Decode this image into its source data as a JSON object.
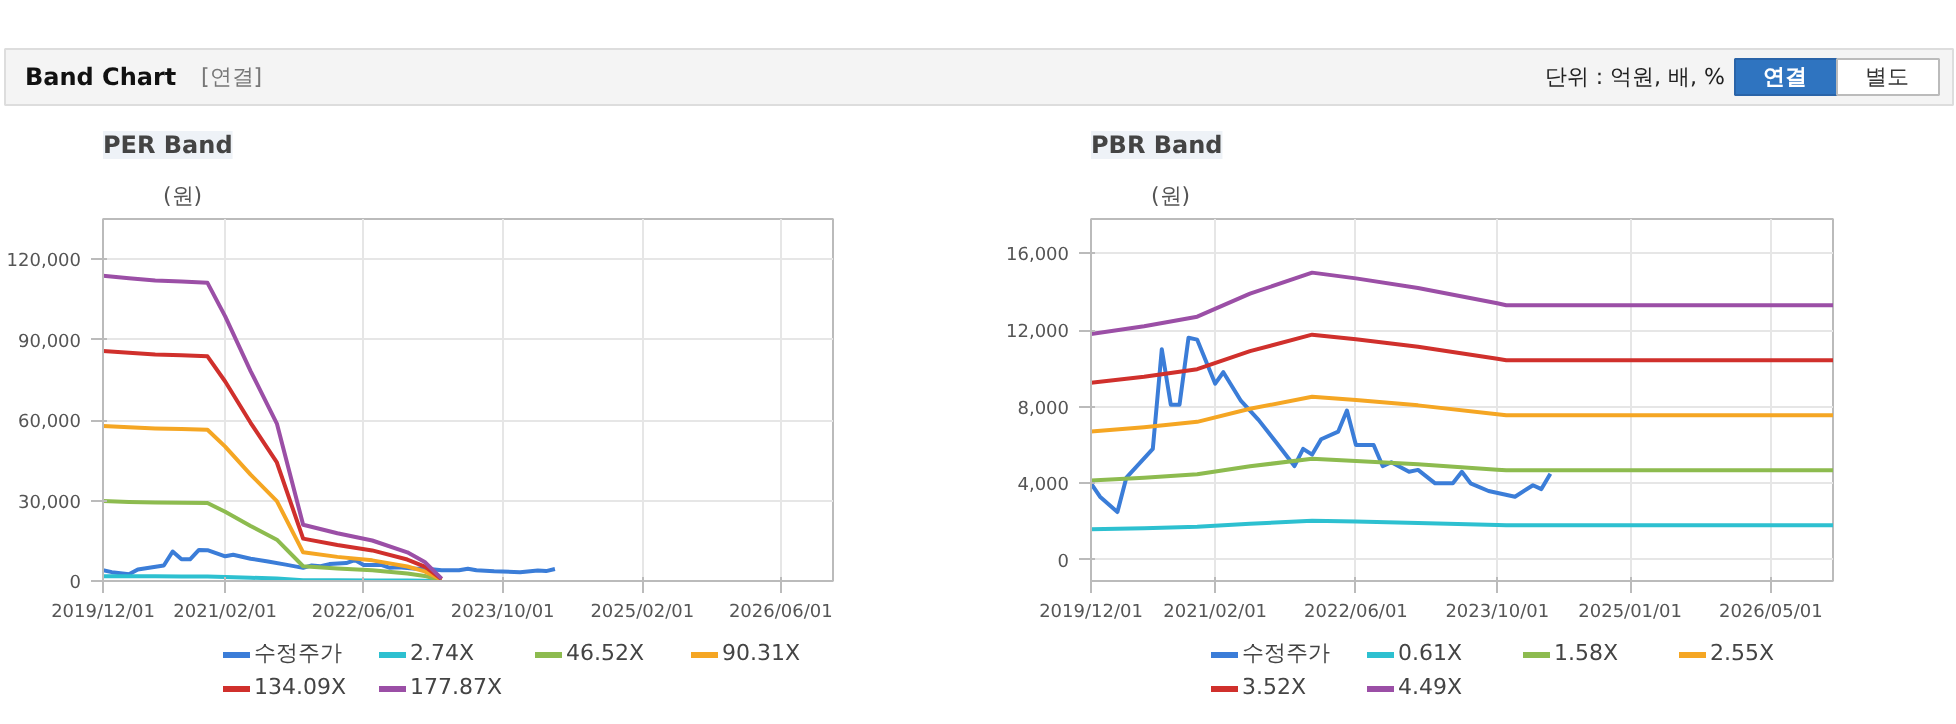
{
  "chart_data": [
    {
      "type": "other",
      "title": "Band Chart",
      "annotations": [
        "[연결]",
        "단위 : 억원, 배, %",
        "연결",
        "별도"
      ]
    },
    {
      "type": "line",
      "title": "PER Band",
      "ylabel": "(원)",
      "grid": true,
      "legend": "bottom",
      "marker": "none",
      "line_style": "solid",
      "xlim": [
        "2019-12-01",
        "2026-12-01"
      ],
      "ylim": [
        0,
        135000
      ],
      "xticks": [
        {
          "value": "2019-12-01",
          "label": "2019/12/01"
        },
        {
          "value": "2021-02-01",
          "label": "2021/02/01"
        },
        {
          "value": "2022-06-01",
          "label": "2022/06/01"
        },
        {
          "value": "2023-10-01",
          "label": "2023/10/01"
        },
        {
          "value": "2025-02-01",
          "label": "2025/02/01"
        },
        {
          "value": "2026-06-01",
          "label": "2026/06/01"
        }
      ],
      "yticks": [
        {
          "value": 0,
          "label": "0"
        },
        {
          "value": 30000,
          "label": "30,000"
        },
        {
          "value": 60000,
          "label": "60,000"
        },
        {
          "value": 90000,
          "label": "90,000"
        },
        {
          "value": 120000,
          "label": "120,000"
        }
      ],
      "x": [
        "2019-12-01",
        "2020-03-01",
        "2020-06-01",
        "2020-09-01",
        "2020-12-01",
        "2021-02-01",
        "2021-05-01",
        "2021-08-01",
        "2021-11-01",
        "2022-03-01",
        "2022-07-01",
        "2022-11-01",
        "2023-01-01",
        "2023-03-01"
      ],
      "series": [
        {
          "name": "수정주가",
          "color": "#3b7dd8",
          "x": [
            "2019-12-01",
            "2020-01-01",
            "2020-03-01",
            "2020-04-01",
            "2020-07-01",
            "2020-08-01",
            "2020-09-01",
            "2020-10-01",
            "2020-11-01",
            "2020-12-01",
            "2021-02-01",
            "2021-03-01",
            "2021-05-01",
            "2021-07-01",
            "2021-09-01",
            "2021-11-01",
            "2021-12-01",
            "2022-01-01",
            "2022-02-01",
            "2022-04-01",
            "2022-05-01",
            "2022-06-01",
            "2022-08-01",
            "2022-09-01",
            "2022-10-01",
            "2022-12-01",
            "2023-01-01",
            "2023-03-01",
            "2023-05-01",
            "2023-06-01",
            "2023-07-01",
            "2023-09-01",
            "2023-12-01",
            "2024-02-01",
            "2024-03-01",
            "2024-04-01"
          ],
          "values": [
            4000,
            3300,
            2500,
            4300,
            5800,
            11000,
            8100,
            8100,
            11600,
            11500,
            9200,
            9800,
            8300,
            7300,
            6100,
            4900,
            5800,
            5500,
            6300,
            6700,
            7800,
            6000,
            6000,
            4900,
            5100,
            4600,
            4700,
            4000,
            4000,
            4600,
            4000,
            3600,
            3300,
            3900,
            3700,
            4500
          ]
        },
        {
          "name": "2.74X",
          "color": "#2dc0d0",
          "values": [
            1750,
            1740,
            1730,
            1720,
            1710,
            1520,
            1210,
            900,
            320,
            270,
            230,
            160,
            110,
            15
          ]
        },
        {
          "name": "46.52X",
          "color": "#8dbb4f",
          "values": [
            29800,
            29500,
            29300,
            29200,
            29100,
            25800,
            20500,
            15400,
            5500,
            4700,
            4000,
            2800,
            1900,
            200
          ]
        },
        {
          "name": "90.31X",
          "color": "#f5a623",
          "values": [
            57800,
            57300,
            56900,
            56700,
            56400,
            50100,
            39700,
            29800,
            10700,
            9000,
            7700,
            5400,
            3600,
            500
          ]
        },
        {
          "name": "134.09X",
          "color": "#d0302c",
          "values": [
            85800,
            85100,
            84500,
            84200,
            83800,
            74400,
            59000,
            44200,
            15800,
            13400,
            11400,
            8000,
            5400,
            700
          ]
        },
        {
          "name": "177.87X",
          "color": "#9b4fa6",
          "values": [
            113800,
            112900,
            112100,
            111700,
            111200,
            98700,
            78300,
            58700,
            21000,
            17800,
            15100,
            10700,
            7100,
            900
          ]
        }
      ]
    },
    {
      "type": "line",
      "title": "PBR Band",
      "ylabel": "(원)",
      "grid": true,
      "legend": "bottom",
      "marker": "none",
      "line_style": "solid",
      "xlim": [
        "2019-12-01",
        "2026-12-01"
      ],
      "ylim": [
        -1100,
        17800
      ],
      "xticks": [
        {
          "value": "2019-12-01",
          "label": "2019/12/01"
        },
        {
          "value": "2021-02-01",
          "label": "2021/02/01"
        },
        {
          "value": "2022-06-01",
          "label": "2022/06/01"
        },
        {
          "value": "2023-10-01",
          "label": "2023/10/01"
        },
        {
          "value": "2025-01-01",
          "label": "2025/01/01"
        },
        {
          "value": "2026-05-01",
          "label": "2026/05/01"
        }
      ],
      "yticks": [
        {
          "value": 0,
          "label": "0"
        },
        {
          "value": 4000,
          "label": "4,000"
        },
        {
          "value": 8000,
          "label": "8,000"
        },
        {
          "value": 12000,
          "label": "12,000"
        },
        {
          "value": 16000,
          "label": "16,000"
        }
      ],
      "x": [
        "2019-12-01",
        "2020-06-01",
        "2020-12-01",
        "2021-06-01",
        "2022-01-01",
        "2022-06-01",
        "2023-01-01",
        "2023-10-01",
        "2023-11-01",
        "2026-12-01"
      ],
      "series": [
        {
          "name": "수정주가",
          "color": "#3b7dd8",
          "x": [
            "2019-12-01",
            "2020-01-01",
            "2020-03-01",
            "2020-04-01",
            "2020-07-01",
            "2020-08-01",
            "2020-09-01",
            "2020-10-01",
            "2020-11-01",
            "2020-12-01",
            "2021-02-01",
            "2021-03-01",
            "2021-05-01",
            "2021-07-01",
            "2021-09-01",
            "2021-11-01",
            "2021-12-01",
            "2022-01-01",
            "2022-02-01",
            "2022-04-01",
            "2022-05-01",
            "2022-06-01",
            "2022-08-01",
            "2022-09-01",
            "2022-10-01",
            "2022-12-01",
            "2023-01-01",
            "2023-03-01",
            "2023-05-01",
            "2023-06-01",
            "2023-07-01",
            "2023-09-01",
            "2023-12-01",
            "2024-02-01",
            "2024-03-01",
            "2024-04-01"
          ],
          "values": [
            4000,
            3300,
            2500,
            4300,
            5800,
            11000,
            8100,
            8100,
            11600,
            11500,
            9200,
            9800,
            8300,
            7300,
            6100,
            4900,
            5800,
            5500,
            6300,
            6700,
            7800,
            6000,
            6000,
            4900,
            5100,
            4600,
            4700,
            4000,
            4000,
            4600,
            4000,
            3600,
            3300,
            3900,
            3700,
            4500
          ]
        },
        {
          "name": "0.61X",
          "color": "#2dc0d0",
          "values": [
            1600,
            1660,
            1730,
            1890,
            2040,
            2000,
            1930,
            1820,
            1810,
            1810
          ]
        },
        {
          "name": "1.58X",
          "color": "#8dbb4f",
          "values": [
            4150,
            4290,
            4470,
            4890,
            5280,
            5170,
            5000,
            4710,
            4680,
            4680
          ]
        },
        {
          "name": "2.55X",
          "color": "#f5a623",
          "values": [
            6700,
            6930,
            7210,
            7890,
            8520,
            8350,
            8070,
            7610,
            7550,
            7550
          ]
        },
        {
          "name": "3.52X",
          "color": "#d0302c",
          "values": [
            9250,
            9560,
            9960,
            10900,
            11760,
            11520,
            11130,
            10500,
            10430,
            10430
          ]
        },
        {
          "name": "4.49X",
          "color": "#9b4fa6",
          "values": [
            11800,
            12200,
            12700,
            13900,
            15000,
            14700,
            14200,
            13400,
            13300,
            13300
          ]
        }
      ]
    }
  ]
}
